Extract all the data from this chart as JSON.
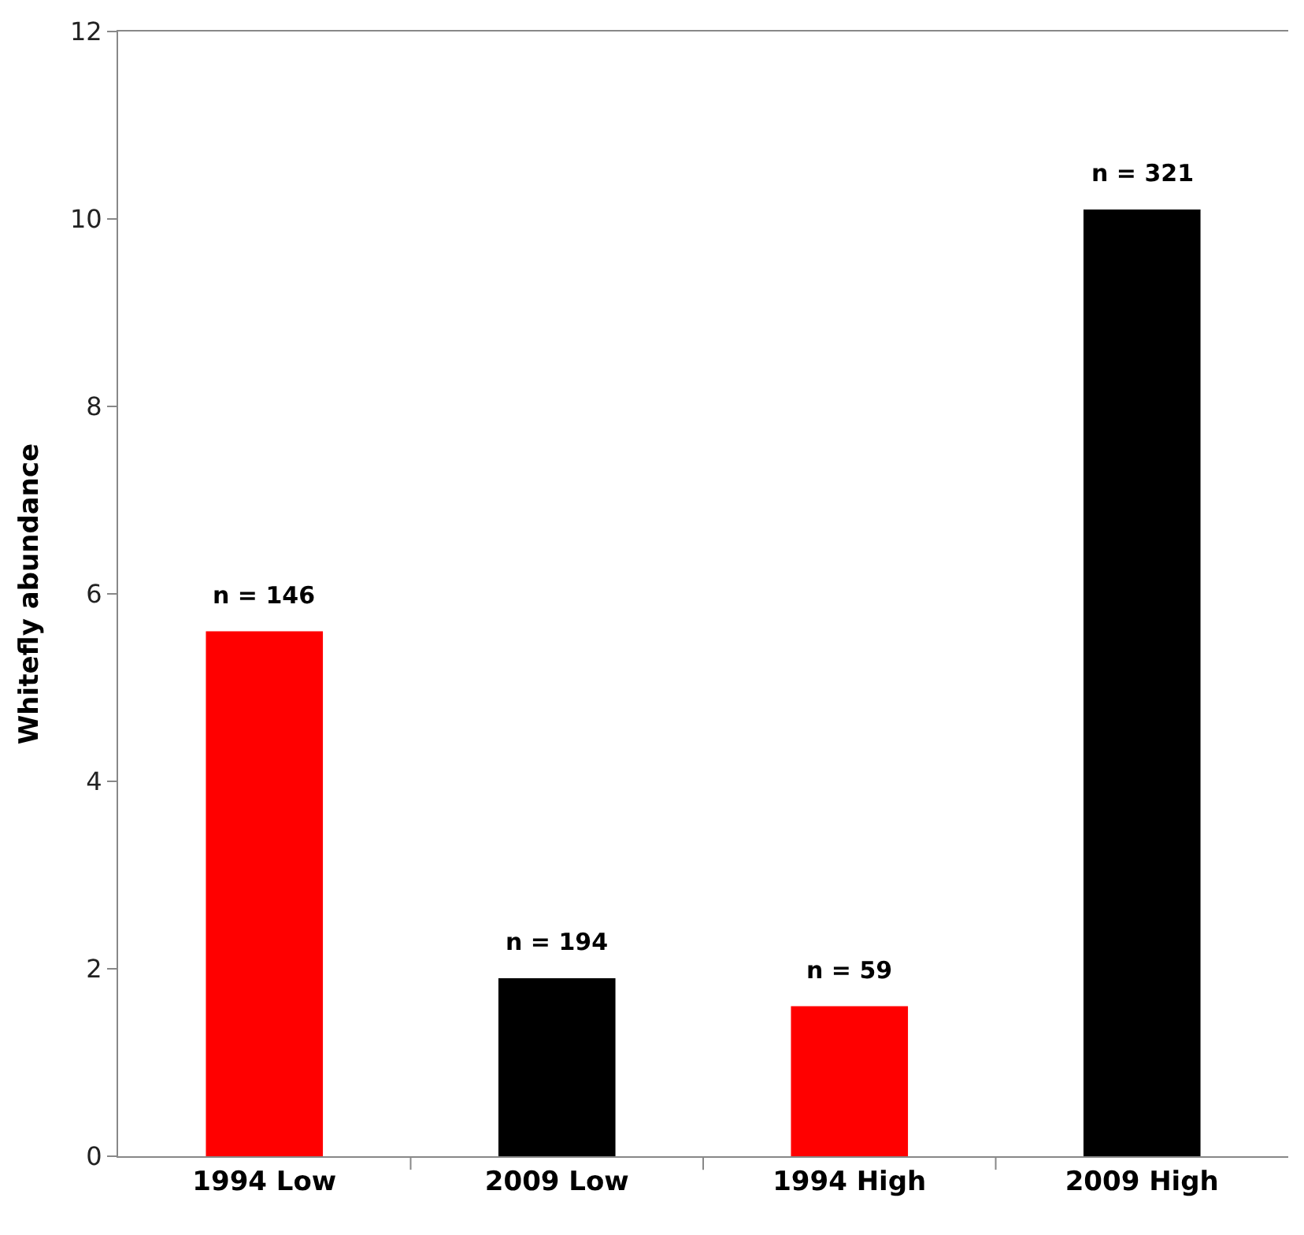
{
  "chart_data": {
    "type": "bar",
    "ylabel": "Whitefly abundance",
    "categories": [
      "1994 Low",
      "2009 Low",
      "1994 High",
      "2009 High"
    ],
    "values": [
      5.6,
      1.9,
      1.6,
      10.1
    ],
    "colors": [
      "#ff0000",
      "#000000",
      "#ff0000",
      "#000000"
    ],
    "annotations": [
      {
        "text": "n = 146",
        "x": "1994 Low",
        "y": 5.6
      },
      {
        "text": "n = 194",
        "x": "2009 Low",
        "y": 1.9
      },
      {
        "text": "n = 59",
        "x": "1994 High",
        "y": 1.6
      },
      {
        "text": "n = 321",
        "x": "2009 High",
        "y": 10.1
      }
    ],
    "ylim": [
      0,
      12
    ],
    "yticks": [
      0,
      2,
      4,
      6,
      8,
      10,
      12
    ],
    "legend": false
  }
}
